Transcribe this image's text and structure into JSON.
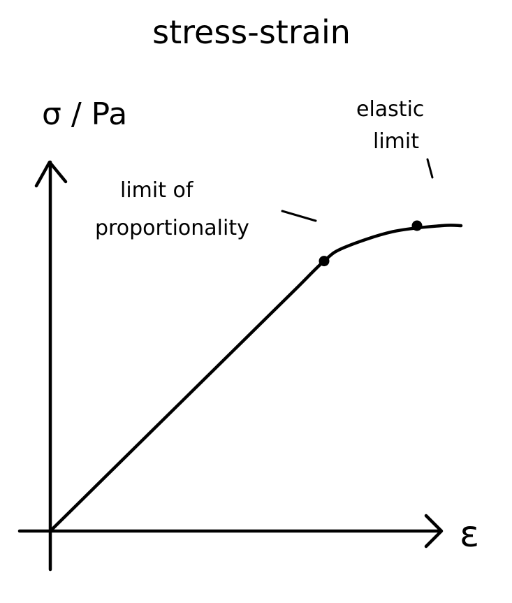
{
  "chart_data": {
    "type": "line",
    "title": "stress-strain",
    "ylabel": "σ / Pa",
    "xlabel": "ε",
    "grid": false,
    "legend": "none",
    "ink_color": "#000000",
    "curve": {
      "x": [
        0,
        1,
        2,
        3,
        4,
        5,
        5.6,
        6,
        7,
        8,
        8.4
      ],
      "y": [
        0,
        1.2,
        2.4,
        3.6,
        4.8,
        6.0,
        6.72,
        7.05,
        7.45,
        7.6,
        7.6
      ]
    },
    "points": [
      {
        "id": "proportionality",
        "x": 5.6,
        "y": 6.72,
        "label": [
          "limit of",
          "proportionality"
        ]
      },
      {
        "id": "elastic",
        "x": 7.5,
        "y": 7.6,
        "label": [
          "elastic",
          "limit"
        ]
      }
    ]
  }
}
